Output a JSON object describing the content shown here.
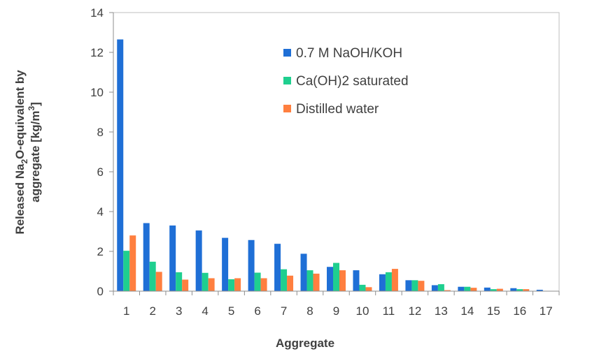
{
  "chart_data": {
    "type": "bar",
    "xlabel": "Aggregate",
    "ylabel_line1_prefix": "Released Na",
    "ylabel_line1_sub": "2",
    "ylabel_line1_suffix": "O-equivalent by",
    "ylabel_line2_prefix": "aggregate [kg/m",
    "ylabel_line2_sup": "3",
    "ylabel_line2_suffix": "]",
    "ylim": [
      0,
      14
    ],
    "yticks": [
      0,
      2,
      4,
      6,
      8,
      10,
      12,
      14
    ],
    "categories": [
      "1",
      "2",
      "3",
      "4",
      "5",
      "6",
      "7",
      "8",
      "9",
      "10",
      "11",
      "12",
      "13",
      "14",
      "15",
      "16",
      "17"
    ],
    "legend_position": "top-center",
    "grid": false,
    "series": [
      {
        "name": "0.7 M NaOH/KOH",
        "color": "#1f6fd6",
        "values": [
          12.65,
          3.42,
          3.3,
          3.05,
          2.68,
          2.57,
          2.38,
          1.88,
          1.22,
          1.05,
          0.85,
          0.55,
          0.3,
          0.22,
          0.18,
          0.15,
          0.07
        ]
      },
      {
        "name": "Ca(OH)2 saturated",
        "color": "#1fcf8f",
        "values": [
          2.03,
          1.48,
          0.95,
          0.92,
          0.6,
          0.93,
          1.1,
          1.05,
          1.42,
          0.32,
          0.95,
          0.55,
          0.35,
          0.22,
          0.1,
          0.1,
          0.0
        ]
      },
      {
        "name": "Distilled water",
        "color": "#ff7f3f",
        "values": [
          2.8,
          0.97,
          0.58,
          0.65,
          0.65,
          0.65,
          0.78,
          0.88,
          1.05,
          0.2,
          1.12,
          0.52,
          0.05,
          0.17,
          0.12,
          0.1,
          0.0
        ]
      }
    ]
  }
}
